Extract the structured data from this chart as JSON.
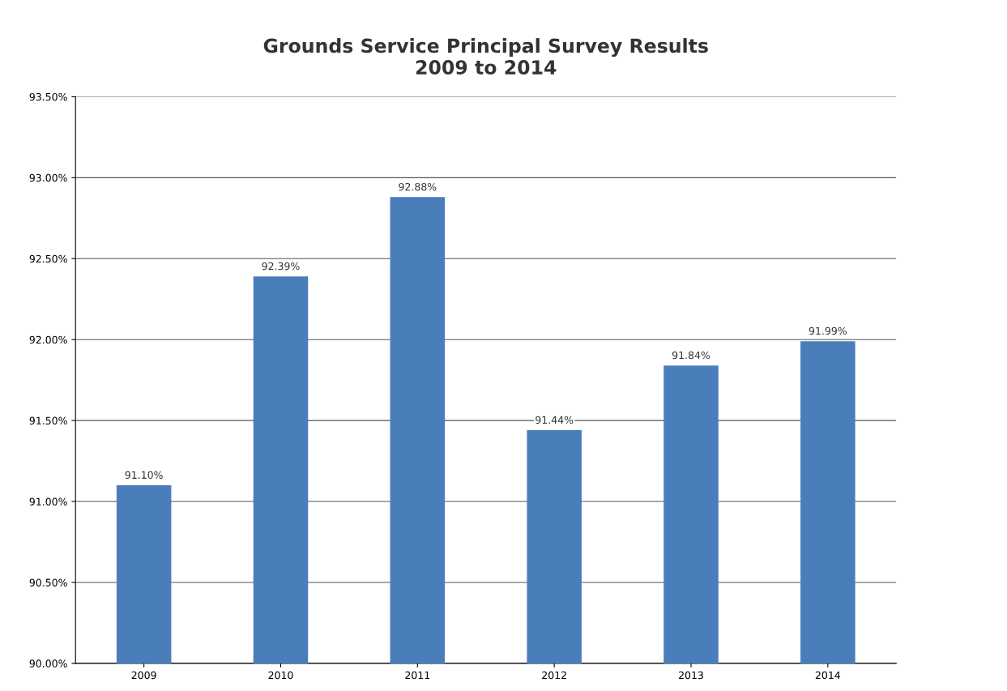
{
  "chart_data": {
    "type": "bar",
    "title": "Grounds Service Principal Survey Results\n2009 to 2014",
    "categories": [
      "2009",
      "2010",
      "2011",
      "2012",
      "2013",
      "2014"
    ],
    "series": [
      {
        "color": "#4a7ebb",
        "values": [
          91.1,
          92.39,
          92.88,
          91.44,
          91.84,
          91.99
        ],
        "value_labels": [
          "91.10%",
          "92.39%",
          "92.88%",
          "91.44%",
          "91.84%",
          "91.99%"
        ]
      }
    ],
    "ylim": [
      90,
      93.5
    ],
    "yticks": [
      {
        "value": 90,
        "label": "90.00%"
      },
      {
        "value": 90.5,
        "label": "90.50%"
      },
      {
        "value": 91,
        "label": "91.00%"
      },
      {
        "value": 91.5,
        "label": "91.50%"
      },
      {
        "value": 92,
        "label": "92.00%"
      },
      {
        "value": 92.5,
        "label": "92.50%"
      },
      {
        "value": 93,
        "label": "93.00%"
      },
      {
        "value": 93.5,
        "label": "93.50%"
      }
    ],
    "grid": "y"
  }
}
